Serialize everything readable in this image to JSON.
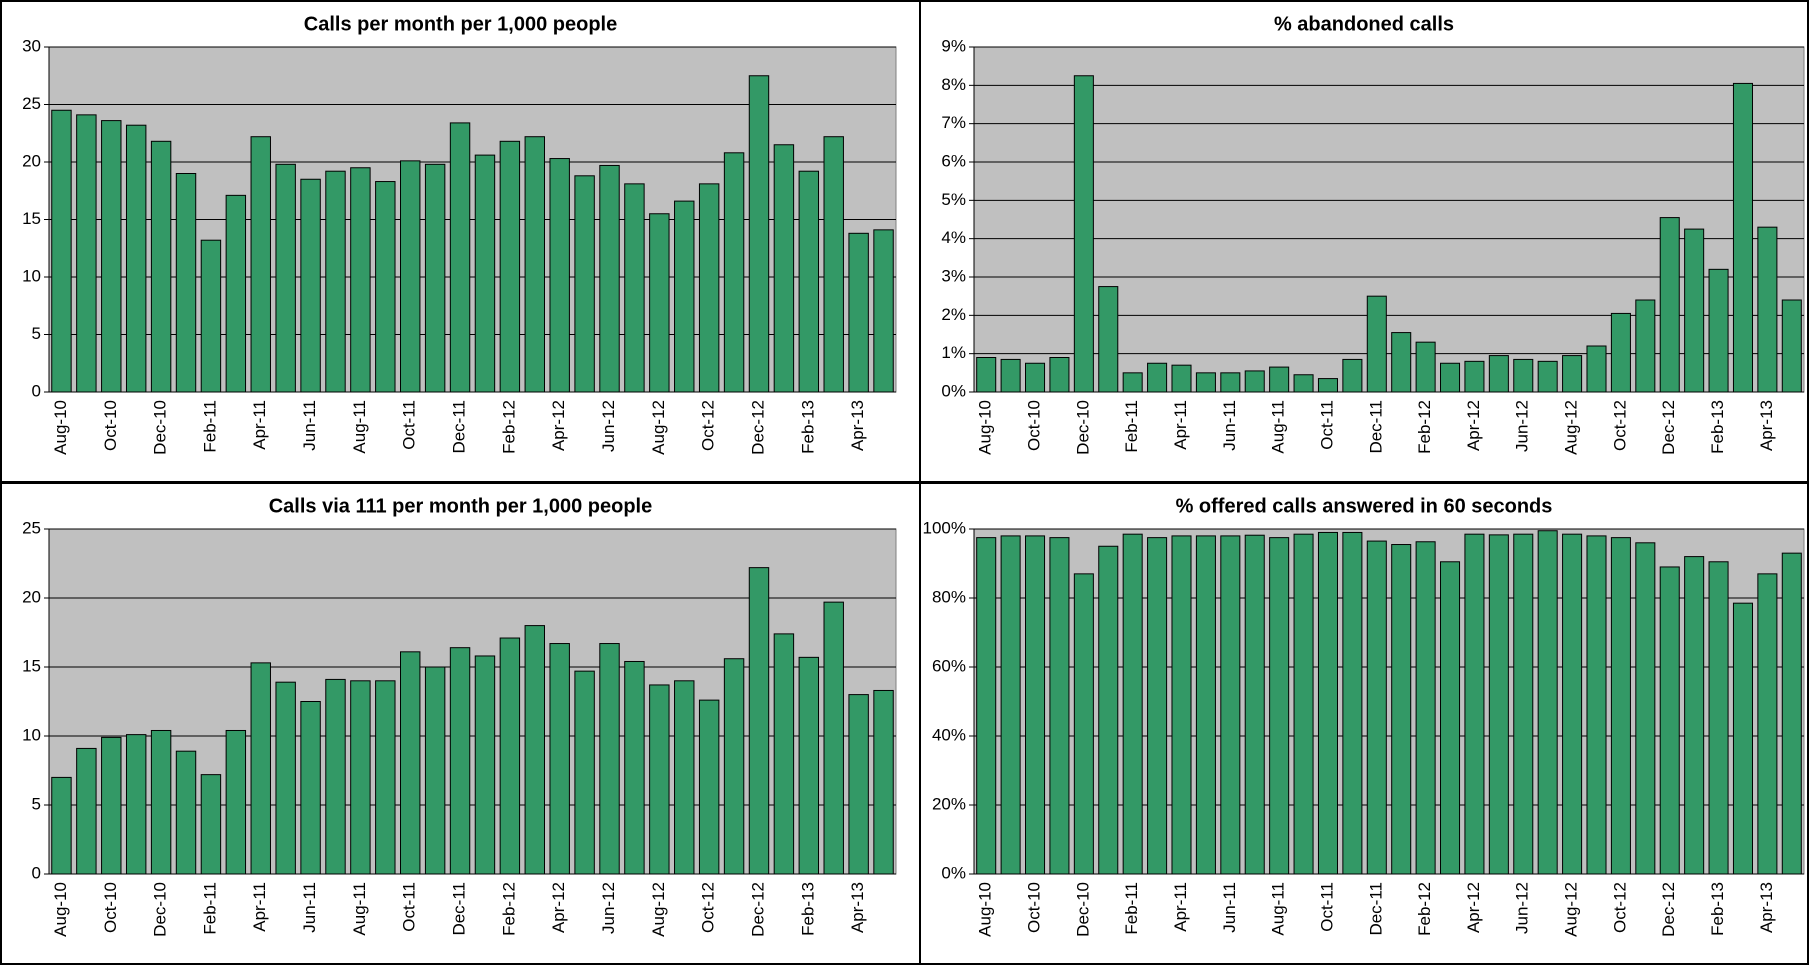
{
  "chart_data": [
    {
      "type": "bar",
      "title": "Calls per month per 1,000 people",
      "categories": [
        "Aug-10",
        null,
        "Oct-10",
        null,
        "Dec-10",
        null,
        "Feb-11",
        null,
        "Apr-11",
        null,
        "Jun-11",
        null,
        "Aug-11",
        null,
        "Oct-11",
        null,
        "Dec-11",
        null,
        "Feb-12",
        null,
        "Apr-12",
        null,
        "Jun-12",
        null,
        "Aug-12",
        null,
        "Oct-12",
        null,
        "Dec-12",
        null,
        "Feb-13",
        null,
        "Apr-13",
        null
      ],
      "values": [
        24.5,
        24.1,
        23.6,
        23.2,
        21.8,
        19,
        13.2,
        17.1,
        22.2,
        19.8,
        18.5,
        19.2,
        19.5,
        18.3,
        20.1,
        19.8,
        23.4,
        20.6,
        21.8,
        22.2,
        20.3,
        18.8,
        19.7,
        18.1,
        15.5,
        16.6,
        18.1,
        20.8,
        27.5,
        21.5,
        19.2,
        22.2,
        13.8,
        14.1
      ],
      "color": "#339966",
      "plot_background": "#c0c0c0",
      "grid": true,
      "ylim": [
        0,
        30
      ],
      "yticks": [
        0,
        5,
        10,
        15,
        20,
        25,
        30
      ]
    },
    {
      "type": "bar",
      "title": "% abandoned calls",
      "categories": [
        "Aug-10",
        null,
        "Oct-10",
        null,
        "Dec-10",
        null,
        "Feb-11",
        null,
        "Apr-11",
        null,
        "Jun-11",
        null,
        "Aug-11",
        null,
        "Oct-11",
        null,
        "Dec-11",
        null,
        "Feb-12",
        null,
        "Apr-12",
        null,
        "Jun-12",
        null,
        "Aug-12",
        null,
        "Oct-12",
        null,
        "Dec-12",
        null,
        "Feb-13",
        null,
        "Apr-13",
        null
      ],
      "values": [
        0.9,
        0.85,
        0.75,
        0.9,
        8.25,
        2.75,
        0.5,
        0.75,
        0.7,
        0.5,
        0.5,
        0.55,
        0.65,
        0.45,
        0.35,
        0.85,
        2.5,
        1.55,
        1.3,
        0.75,
        0.8,
        0.95,
        0.85,
        0.8,
        0.95,
        1.2,
        2.05,
        2.4,
        4.55,
        4.25,
        3.2,
        8.05,
        4.3,
        2.4
      ],
      "color": "#339966",
      "plot_background": "#c0c0c0",
      "grid": true,
      "ylim": [
        0,
        9
      ],
      "yticks": [
        {
          "value": 0,
          "label": "0%"
        },
        {
          "value": 1,
          "label": "1%"
        },
        {
          "value": 2,
          "label": "2%"
        },
        {
          "value": 3,
          "label": "3%"
        },
        {
          "value": 4,
          "label": "4%"
        },
        {
          "value": 5,
          "label": "5%"
        },
        {
          "value": 6,
          "label": "6%"
        },
        {
          "value": 7,
          "label": "7%"
        },
        {
          "value": 8,
          "label": "8%"
        },
        {
          "value": 9,
          "label": "9%"
        }
      ]
    },
    {
      "type": "bar",
      "title": "Calls via 111 per month per 1,000 people",
      "categories": [
        "Aug-10",
        null,
        "Oct-10",
        null,
        "Dec-10",
        null,
        "Feb-11",
        null,
        "Apr-11",
        null,
        "Jun-11",
        null,
        "Aug-11",
        null,
        "Oct-11",
        null,
        "Dec-11",
        null,
        "Feb-12",
        null,
        "Apr-12",
        null,
        "Jun-12",
        null,
        "Aug-12",
        null,
        "Oct-12",
        null,
        "Dec-12",
        null,
        "Feb-13",
        null,
        "Apr-13",
        null
      ],
      "values": [
        7,
        9.1,
        9.9,
        10.1,
        10.4,
        8.9,
        7.2,
        10.4,
        15.3,
        13.9,
        12.5,
        14.1,
        14,
        14,
        16.1,
        15,
        16.4,
        15.8,
        17.1,
        18,
        16.7,
        14.7,
        16.7,
        15.4,
        13.7,
        14,
        12.6,
        15.6,
        22.2,
        17.4,
        15.7,
        19.7,
        13,
        13.3
      ],
      "color": "#339966",
      "plot_background": "#c0c0c0",
      "grid": true,
      "ylim": [
        0,
        25
      ],
      "yticks": [
        0,
        5,
        10,
        15,
        20,
        25
      ]
    },
    {
      "type": "bar",
      "title": "% offered calls answered in 60 seconds",
      "categories": [
        "Aug-10",
        null,
        "Oct-10",
        null,
        "Dec-10",
        null,
        "Feb-11",
        null,
        "Apr-11",
        null,
        "Jun-11",
        null,
        "Aug-11",
        null,
        "Oct-11",
        null,
        "Dec-11",
        null,
        "Feb-12",
        null,
        "Apr-12",
        null,
        "Jun-12",
        null,
        "Aug-12",
        null,
        "Oct-12",
        null,
        "Dec-12",
        null,
        "Feb-13",
        null,
        "Apr-13",
        null
      ],
      "values": [
        97.5,
        98,
        98,
        97.5,
        87,
        95,
        98.5,
        97.5,
        98,
        98,
        98,
        98.2,
        97.5,
        98.5,
        99,
        99,
        96.5,
        95.5,
        96.3,
        90.5,
        98.5,
        98.3,
        98.5,
        99.5,
        98.5,
        98,
        97.5,
        96,
        89,
        92,
        90.5,
        78.5,
        87,
        93
      ],
      "color": "#339966",
      "plot_background": "#c0c0c0",
      "grid": true,
      "ylim": [
        0,
        100
      ],
      "yticks": [
        {
          "value": 0,
          "label": "0%"
        },
        {
          "value": 20,
          "label": "20%"
        },
        {
          "value": 40,
          "label": "40%"
        },
        {
          "value": 60,
          "label": "60%"
        },
        {
          "value": 80,
          "label": "80%"
        },
        {
          "value": 100,
          "label": "100%"
        }
      ]
    }
  ]
}
